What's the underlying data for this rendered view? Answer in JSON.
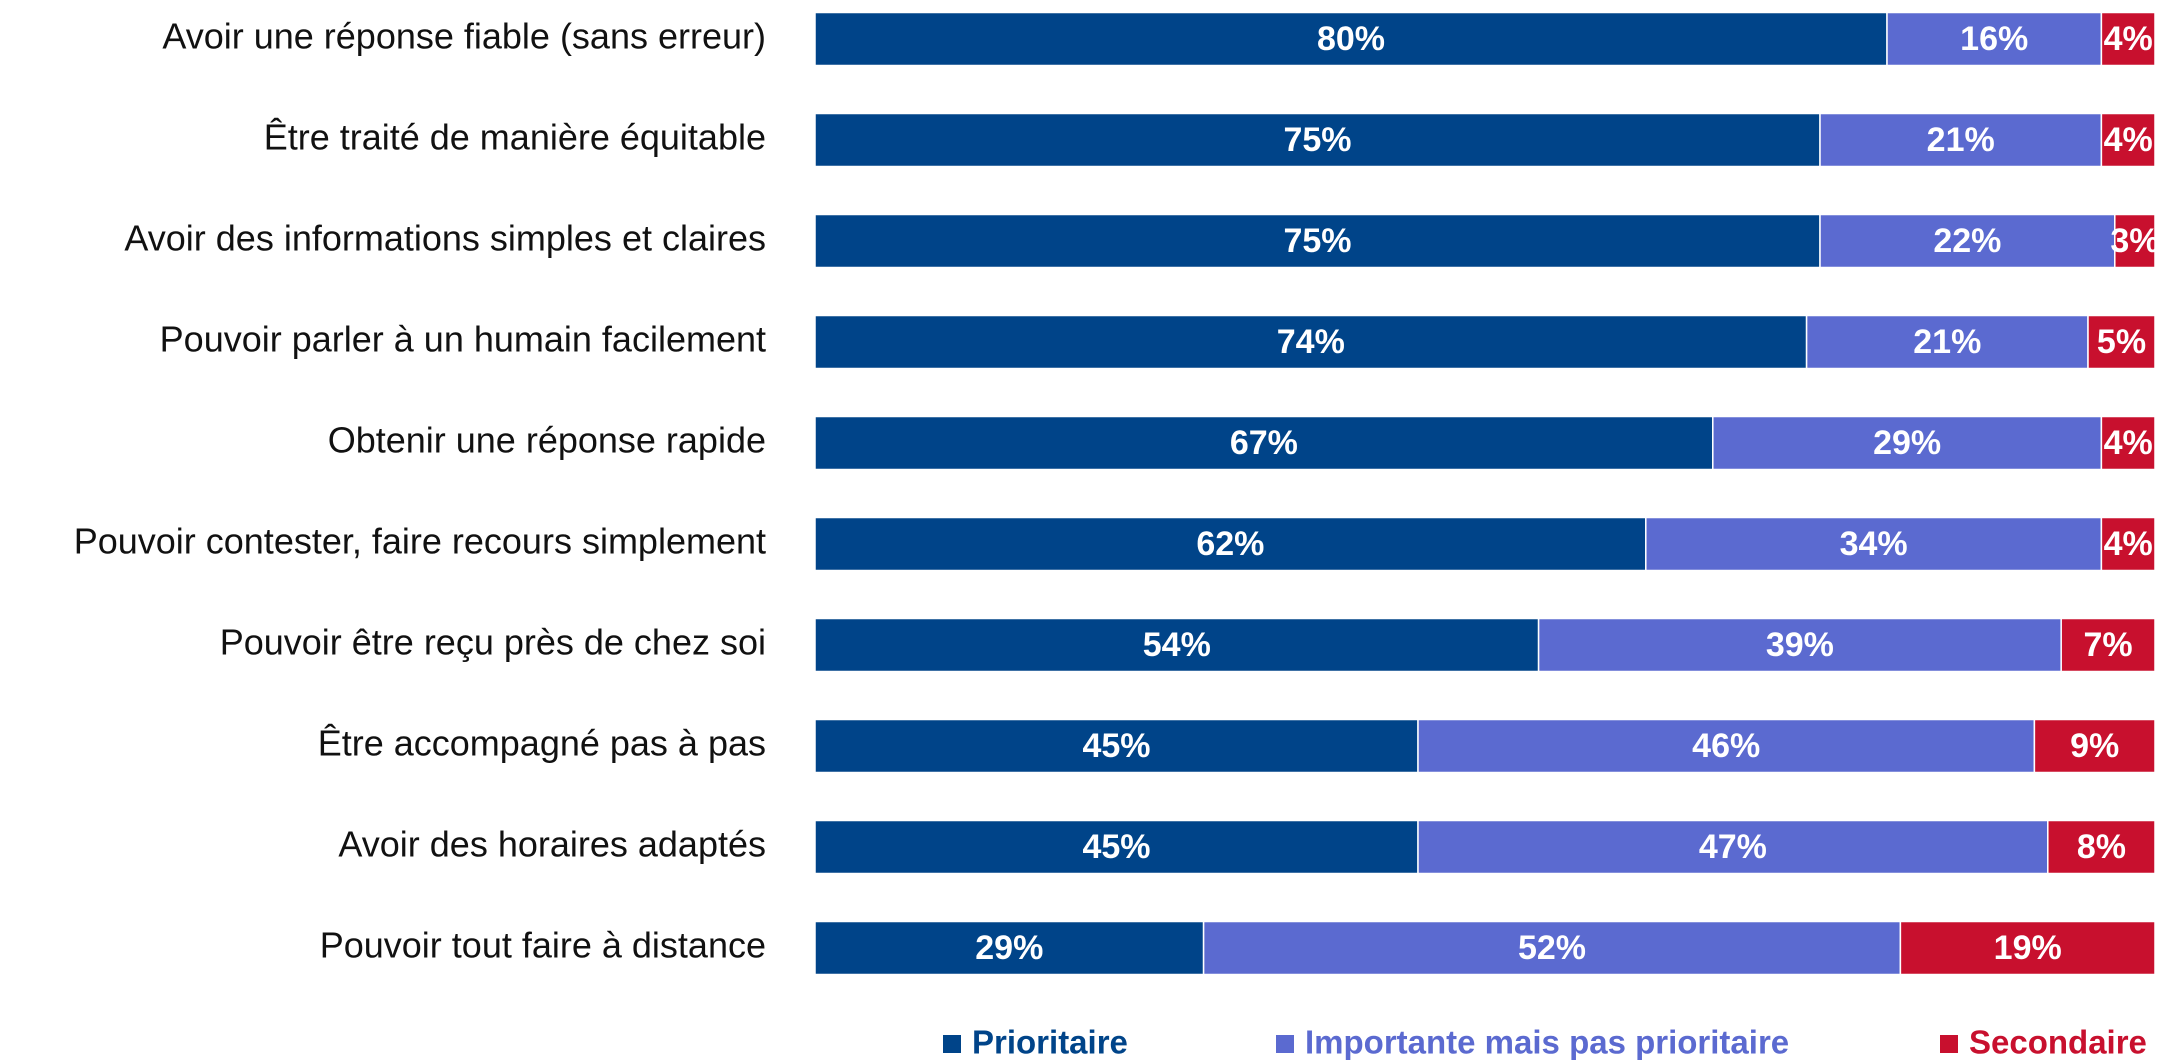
{
  "chart_data": {
    "type": "stacked-barh",
    "categories": [
      "Avoir une réponse fiable (sans erreur)",
      "Être traité de manière équitable",
      "Avoir des informations simples et claires",
      "Pouvoir parler à un humain facilement",
      "Obtenir une réponse rapide",
      "Pouvoir contester, faire recours simplement",
      "Pouvoir être reçu près de chez soi",
      "Être accompagné pas à pas",
      "Avoir des horaires adaptés",
      "Pouvoir tout faire à distance"
    ],
    "series": [
      {
        "name": "Prioritaire",
        "color": "#004489",
        "values": [
          80,
          75,
          75,
          74,
          67,
          62,
          54,
          45,
          45,
          29
        ],
        "value_labels": [
          "80%",
          "75%",
          "75%",
          "74%",
          "67%",
          "62%",
          "54%",
          "45%",
          "45%",
          "29%"
        ]
      },
      {
        "name": "Importante mais pas prioritaire",
        "color": "#5b6ad0",
        "values": [
          16,
          21,
          22,
          21,
          29,
          34,
          39,
          46,
          47,
          52
        ],
        "value_labels": [
          "16%",
          "21%",
          "22%",
          "21%",
          "29%",
          "34%",
          "39%",
          "46%",
          "47%",
          "52%"
        ]
      },
      {
        "name": "Secondaire",
        "color": "#c8102e",
        "values": [
          4,
          4,
          3,
          5,
          4,
          4,
          7,
          9,
          8,
          19
        ],
        "value_labels": [
          "4%",
          "4%",
          "3%",
          "5%",
          "4%",
          "4%",
          "7%",
          "9%",
          "8%",
          "19%"
        ]
      }
    ],
    "xlim": [
      0,
      100
    ],
    "legend": "bottom"
  }
}
